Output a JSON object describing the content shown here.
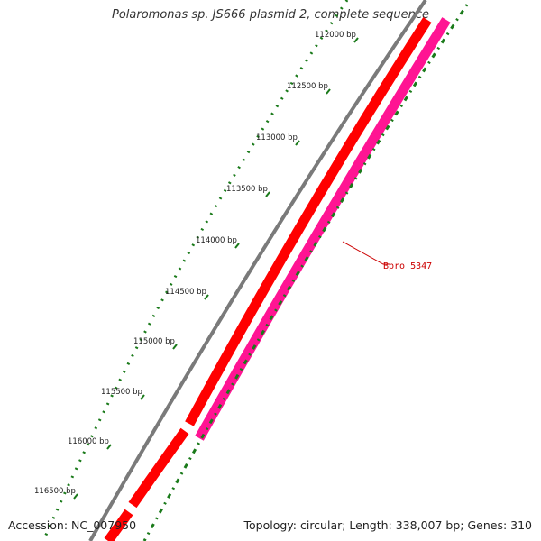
{
  "title": "Polaromonas sp. JS666 plasmid 2, complete sequence",
  "accession_text": "Accession: NC_007950",
  "summary_text": "Topology: circular; Length: 338,007 bp; Genes: 310",
  "ticks": [
    {
      "label": "112000 bp"
    },
    {
      "label": "112500 bp"
    },
    {
      "label": "113000 bp"
    },
    {
      "label": "113500 bp"
    },
    {
      "label": "114000 bp"
    },
    {
      "label": "114500 bp"
    },
    {
      "label": "115000 bp"
    },
    {
      "label": "115500 bp"
    },
    {
      "label": "116000 bp"
    },
    {
      "label": "116500 bp"
    }
  ],
  "gene_label": "Bpro_5347",
  "colors": {
    "backbone": "#7a7a7a",
    "forward_gene": "#ff0000",
    "reverse_gene": "#ff1493",
    "tick": "#1a7a1a",
    "gene_label": "#cc0000"
  }
}
